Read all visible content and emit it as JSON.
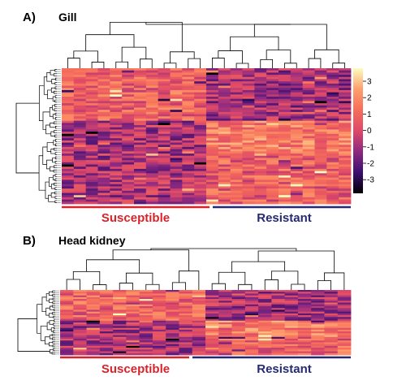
{
  "panels": {
    "a": {
      "letter": "A)",
      "title": "Gill"
    },
    "b": {
      "letter": "B)",
      "title": "Head kidney"
    }
  },
  "groups": {
    "susceptible": {
      "label": "Susceptible",
      "color": "#d8232a"
    },
    "resistant": {
      "label": "Resistant",
      "color": "#252a72"
    }
  },
  "colorbar": {
    "ticks": [
      "3",
      "2",
      "1",
      "0",
      "-1",
      "-2",
      "-3"
    ],
    "colors": [
      "#000004",
      "#3b0f70",
      "#8c2981",
      "#de4968",
      "#f66e5b",
      "#fe9f6d",
      "#fcfdbf"
    ]
  },
  "chart_data": [
    {
      "type": "heatmap",
      "title": "Gill",
      "columns": 24,
      "rows": 62,
      "column_groups": [
        {
          "name": "Susceptible",
          "count": 12
        },
        {
          "name": "Resistant",
          "count": 12
        }
      ],
      "value_range": [
        -3,
        3
      ],
      "pattern": "Susceptible columns higher in upper rows; Resistant columns higher in lower rows"
    },
    {
      "type": "heatmap",
      "title": "Head kidney",
      "columns": 22,
      "rows": 36,
      "column_groups": [
        {
          "name": "Susceptible",
          "count": 11
        },
        {
          "name": "Resistant",
          "count": 11
        }
      ],
      "value_range": [
        -3,
        3
      ],
      "pattern": "Susceptible columns higher in upper rows; Resistant columns higher in lower rows"
    }
  ]
}
